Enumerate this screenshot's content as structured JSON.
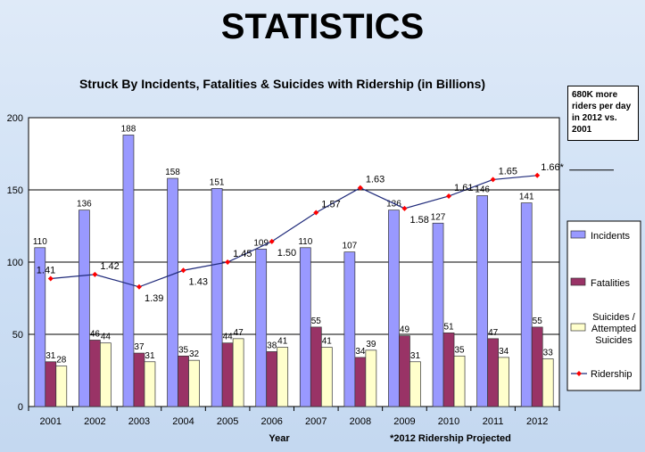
{
  "page": {
    "title": "STATISTICS",
    "callout": "680K more riders per day in 2012 vs. 2001"
  },
  "chart_data": {
    "type": "bar",
    "title": "Struck By Incidents, Fatalities & Suicides with Ridership (in Billions)",
    "xlabel": "Year",
    "ylabel": "",
    "footnote": "*2012 Ridership Projected",
    "ylim": [
      0,
      200
    ],
    "yticks": [
      0,
      50,
      100,
      150,
      200
    ],
    "categories": [
      "2001",
      "2002",
      "2003",
      "2004",
      "2005",
      "2006",
      "2007",
      "2008",
      "2009",
      "2010",
      "2011",
      "2012"
    ],
    "series": [
      {
        "name": "Incidents",
        "color": "#9999ff",
        "values": [
          110,
          136,
          188,
          158,
          151,
          109,
          110,
          107,
          136,
          127,
          146,
          141
        ]
      },
      {
        "name": "Fatalities",
        "color": "#993366",
        "values": [
          31,
          46,
          37,
          35,
          44,
          38,
          55,
          34,
          49,
          51,
          47,
          55
        ]
      },
      {
        "name": "Suicides / Attempted Suicides",
        "color": "#ffffcc",
        "values": [
          28,
          44,
          31,
          32,
          47,
          41,
          41,
          39,
          31,
          35,
          34,
          33
        ]
      }
    ],
    "line_series": {
      "name": "Ridership",
      "color": "#1f2a7a",
      "marker_color": "#ff0000",
      "values": [
        1.41,
        1.42,
        1.39,
        1.43,
        1.45,
        1.5,
        1.57,
        1.63,
        1.58,
        1.61,
        1.65,
        1.66
      ],
      "labels": [
        "1.41",
        "1.42",
        "1.39",
        "1.43",
        "1.45",
        "1.50",
        "1.57",
        "1.63",
        "1.58",
        "1.61",
        "1.65",
        "1.66*"
      ],
      "secondary_ylim": [
        1.1,
        1.8
      ]
    },
    "grid": true,
    "legend_position": "right"
  }
}
